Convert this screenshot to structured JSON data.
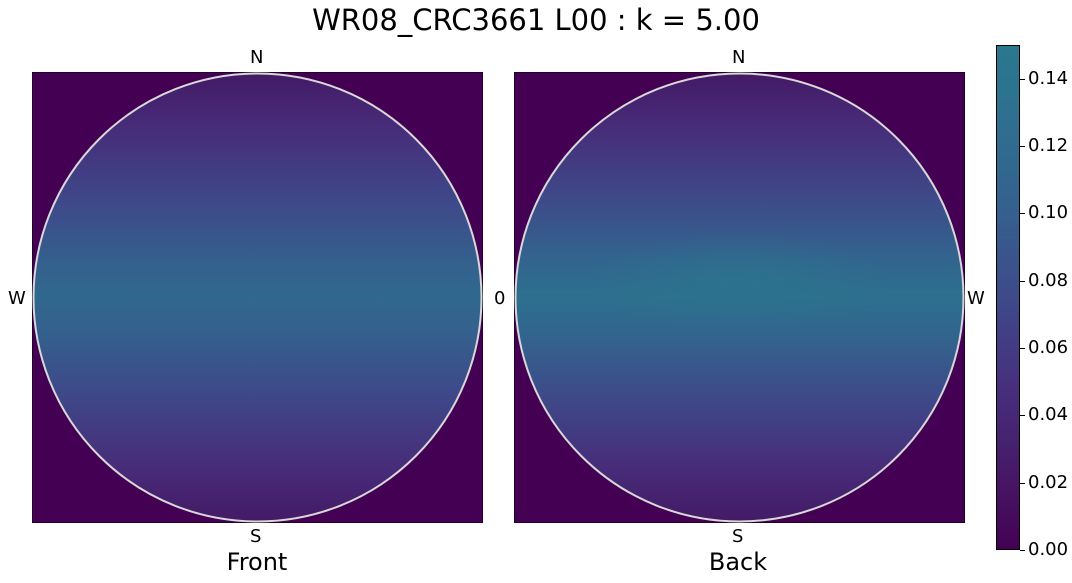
{
  "title": "WR08_CRC3661 L00 : k = 5.00",
  "chart_data": {
    "type": "heatmap",
    "title": "WR08_CRC3661 L00 : k = 5.00",
    "panels": [
      {
        "name": "Front",
        "xlabel": "Front",
        "labels": {
          "top": "N",
          "bottom": "S",
          "left": "W",
          "right": ""
        },
        "center_value": 0.118,
        "limb_value": 0.1,
        "pole_value": 0.02
      },
      {
        "name": "Back",
        "xlabel": "Back",
        "labels": {
          "top": "N",
          "bottom": "S",
          "left": "0",
          "right": "W"
        },
        "center_value": 0.125,
        "limb_value": 0.1,
        "pole_value": 0.02
      }
    ],
    "colorbar": {
      "min": 0.0,
      "max": 0.15,
      "ticks": [
        "0.00",
        "0.02",
        "0.04",
        "0.06",
        "0.08",
        "0.10",
        "0.12",
        "0.14"
      ],
      "colormap": [
        "#440154",
        "#461b68",
        "#46317e",
        "#3e4a89",
        "#35608d",
        "#2f6e8e",
        "#2a788e"
      ]
    },
    "background_color": "#440154",
    "limb_color": "#d8d8d8"
  }
}
